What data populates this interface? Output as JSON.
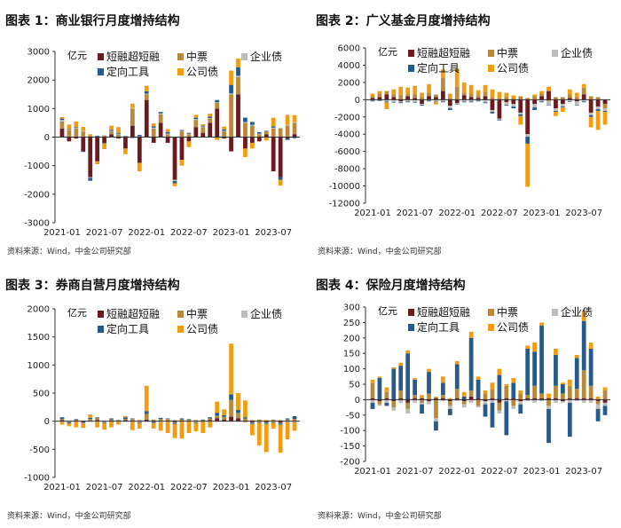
{
  "colors": {
    "short_term": "#6b1a1f",
    "mtn": "#b8893d",
    "corporate": "#bcbcbc",
    "ppn": "#275a8a",
    "company": "#f39c12"
  },
  "chart_data": [
    {
      "type": "bar",
      "stacked": true,
      "title": "图表 1：商业银行月度增持结构",
      "unit": "亿元",
      "source": "资料来源：Wind，中金公司研究部",
      "ylim": [
        -3000,
        3000
      ],
      "yticks": [
        -3000,
        -2000,
        -1000,
        0,
        1000,
        2000,
        3000
      ],
      "xtick_labels": [
        "2021-01",
        "2021-07",
        "2022-01",
        "2022-07",
        "2023-01",
        "2023-07"
      ],
      "categories": [
        "2021-01",
        "2021-02",
        "2021-03",
        "2021-04",
        "2021-05",
        "2021-06",
        "2021-07",
        "2021-08",
        "2021-09",
        "2021-10",
        "2021-11",
        "2021-12",
        "2022-01",
        "2022-02",
        "2022-03",
        "2022-04",
        "2022-05",
        "2022-06",
        "2022-07",
        "2022-08",
        "2022-09",
        "2022-10",
        "2022-11",
        "2022-12",
        "2023-01",
        "2023-02",
        "2023-03",
        "2023-04",
        "2023-05",
        "2023-06",
        "2023-07",
        "2023-08",
        "2023-09",
        "2023-10"
      ],
      "series": [
        {
          "name": "短融超短融",
          "color_key": "short_term",
          "values": [
            300,
            -150,
            -50,
            -500,
            -1400,
            -850,
            -200,
            100,
            -50,
            -400,
            400,
            -900,
            1300,
            -200,
            500,
            -200,
            -1500,
            -800,
            -150,
            350,
            150,
            500,
            1000,
            -50,
            -500,
            1500,
            -400,
            -200,
            -150,
            100,
            -1200,
            -1400,
            -50,
            100
          ]
        },
        {
          "name": "中票",
          "color_key": "mtn",
          "values": [
            250,
            250,
            300,
            200,
            50,
            0,
            50,
            100,
            100,
            0,
            600,
            0,
            200,
            300,
            300,
            100,
            0,
            200,
            100,
            250,
            200,
            150,
            200,
            200,
            1500,
            600,
            500,
            400,
            100,
            100,
            300,
            300,
            400,
            400
          ]
        },
        {
          "name": "企业债",
          "color_key": "corporate",
          "values": [
            50,
            20,
            20,
            10,
            -30,
            20,
            20,
            20,
            20,
            20,
            20,
            30,
            20,
            30,
            30,
            20,
            -40,
            20,
            20,
            30,
            20,
            20,
            20,
            20,
            30,
            50,
            30,
            30,
            20,
            -20,
            30,
            30,
            30,
            20
          ]
        },
        {
          "name": "定向工具",
          "color_key": "ppn",
          "values": [
            50,
            20,
            30,
            -20,
            -100,
            30,
            -20,
            30,
            30,
            20,
            -30,
            50,
            80,
            50,
            50,
            60,
            -80,
            30,
            30,
            50,
            30,
            50,
            80,
            50,
            300,
            300,
            150,
            100,
            50,
            20,
            50,
            -100,
            -50,
            -40
          ]
        },
        {
          "name": "公司债",
          "color_key": "company",
          "values": [
            50,
            150,
            200,
            150,
            50,
            -100,
            -200,
            150,
            200,
            -200,
            150,
            -300,
            200,
            100,
            0,
            100,
            -100,
            -200,
            -200,
            100,
            50,
            100,
            -100,
            100,
            500,
            300,
            -300,
            -200,
            0,
            -100,
            300,
            -200,
            350,
            250
          ]
        }
      ]
    },
    {
      "type": "bar",
      "stacked": true,
      "title": "图表 2：广义基金月度增持结构",
      "unit": "亿元",
      "source": "资料来源：Wind，中金公司研究部",
      "ylim": [
        -12000,
        6000
      ],
      "yticks": [
        -12000,
        -10000,
        -8000,
        -6000,
        -4000,
        -2000,
        0,
        2000,
        4000,
        6000
      ],
      "xtick_labels": [
        "2021-01",
        "2021-07",
        "2022-01",
        "2022-07",
        "2023-01",
        "2023-07"
      ],
      "categories": [
        "2021-01",
        "2021-02",
        "2021-03",
        "2021-04",
        "2021-05",
        "2021-06",
        "2021-07",
        "2021-08",
        "2021-09",
        "2021-10",
        "2021-11",
        "2021-12",
        "2022-01",
        "2022-02",
        "2022-03",
        "2022-04",
        "2022-05",
        "2022-06",
        "2022-07",
        "2022-08",
        "2022-09",
        "2022-10",
        "2022-11",
        "2022-12",
        "2023-01",
        "2023-02",
        "2023-03",
        "2023-04",
        "2023-05",
        "2023-06",
        "2023-07",
        "2023-08",
        "2023-09",
        "2023-10"
      ],
      "series": [
        {
          "name": "短融超短融",
          "color_key": "short_term",
          "values": [
            200,
            300,
            600,
            300,
            -200,
            400,
            200,
            -500,
            400,
            300,
            1000,
            -700,
            -400,
            500,
            300,
            200,
            400,
            -1200,
            -2200,
            -300,
            -500,
            -1500,
            -4000,
            -500,
            400,
            1000,
            -1000,
            -500,
            200,
            -200,
            600,
            -1500,
            -800,
            -500
          ]
        },
        {
          "name": "中票",
          "color_key": "mtn",
          "values": [
            200,
            400,
            400,
            300,
            500,
            200,
            400,
            300,
            400,
            300,
            1500,
            200,
            1500,
            300,
            400,
            300,
            500,
            300,
            200,
            300,
            200,
            400,
            200,
            400,
            300,
            -200,
            300,
            300,
            400,
            300,
            800,
            400,
            300,
            -500
          ]
        },
        {
          "name": "企业债",
          "color_key": "corporate",
          "values": [
            -100,
            -100,
            -200,
            -300,
            -100,
            -200,
            -300,
            -100,
            -100,
            -200,
            -200,
            -300,
            -100,
            -200,
            -200,
            -100,
            -300,
            -200,
            -100,
            -300,
            -300,
            -200,
            -300,
            -400,
            -200,
            -400,
            -300,
            -300,
            -200,
            -400,
            -200,
            -300,
            -300,
            -300
          ]
        },
        {
          "name": "定向工具",
          "color_key": "ppn",
          "values": [
            -100,
            -50,
            -100,
            -50,
            -100,
            -100,
            -50,
            -100,
            -100,
            -50,
            -100,
            -200,
            -50,
            -100,
            -100,
            -100,
            -100,
            -200,
            -100,
            -100,
            -200,
            -200,
            -800,
            -300,
            -100,
            -50,
            -100,
            -100,
            -50,
            -50,
            -100,
            -200,
            -200,
            -100
          ]
        },
        {
          "name": "公司债",
          "color_key": "company",
          "values": [
            300,
            300,
            -800,
            600,
            1000,
            800,
            1000,
            500,
            1000,
            -300,
            1000,
            500,
            2100,
            1200,
            1000,
            600,
            800,
            900,
            700,
            500,
            300,
            -1000,
            -5000,
            200,
            300,
            500,
            -500,
            -500,
            600,
            500,
            400,
            -1200,
            -2200,
            -1500
          ]
        }
      ]
    },
    {
      "type": "bar",
      "stacked": true,
      "title": "图表 3：券商自营月度增持结构",
      "unit": "亿元",
      "source": "资料来源：Wind，中金公司研究部",
      "ylim": [
        -1000,
        2000
      ],
      "yticks": [
        -1000,
        -500,
        0,
        500,
        1000,
        1500,
        2000
      ],
      "xtick_labels": [
        "2021-01",
        "2021-07",
        "2022-01",
        "2022-07",
        "2023-01",
        "2023-07"
      ],
      "categories": [
        "2021-01",
        "2021-02",
        "2021-03",
        "2021-04",
        "2021-05",
        "2021-06",
        "2021-07",
        "2021-08",
        "2021-09",
        "2021-10",
        "2021-11",
        "2021-12",
        "2022-01",
        "2022-02",
        "2022-03",
        "2022-04",
        "2022-05",
        "2022-06",
        "2022-07",
        "2022-08",
        "2022-09",
        "2022-10",
        "2022-11",
        "2022-12",
        "2023-01",
        "2023-02",
        "2023-03",
        "2023-04",
        "2023-05",
        "2023-06",
        "2023-07",
        "2023-08",
        "2023-09",
        "2023-10"
      ],
      "series": [
        {
          "name": "短融超短融",
          "color_key": "short_term",
          "values": [
            20,
            -10,
            10,
            -20,
            10,
            20,
            -10,
            10,
            0,
            20,
            10,
            -10,
            30,
            10,
            -10,
            10,
            -20,
            10,
            10,
            -10,
            10,
            20,
            50,
            30,
            80,
            50,
            -10,
            -20,
            -10,
            -20,
            -10,
            -30,
            -10,
            -10
          ]
        },
        {
          "name": "中票",
          "color_key": "mtn",
          "values": [
            20,
            10,
            20,
            10,
            30,
            40,
            10,
            20,
            10,
            20,
            30,
            20,
            100,
            20,
            40,
            30,
            20,
            20,
            20,
            20,
            10,
            30,
            50,
            50,
            300,
            100,
            50,
            20,
            30,
            20,
            30,
            20,
            30,
            40
          ]
        },
        {
          "name": "企业债",
          "color_key": "corporate",
          "values": [
            -10,
            -10,
            -10,
            -10,
            -10,
            -10,
            -10,
            -10,
            -10,
            -10,
            -10,
            -10,
            -10,
            -10,
            -10,
            -10,
            -10,
            -10,
            -10,
            -10,
            -10,
            -10,
            -10,
            -10,
            -10,
            -10,
            -10,
            -10,
            -10,
            -10,
            -10,
            -10,
            -10,
            -10
          ]
        },
        {
          "name": "定向工具",
          "color_key": "ppn",
          "values": [
            30,
            -20,
            10,
            -10,
            20,
            10,
            -10,
            20,
            10,
            30,
            10,
            -10,
            50,
            -20,
            20,
            10,
            -20,
            20,
            10,
            -10,
            10,
            20,
            50,
            30,
            100,
            50,
            20,
            -20,
            -10,
            -20,
            -10,
            -20,
            20,
            50
          ]
        },
        {
          "name": "公司债",
          "color_key": "company",
          "values": [
            -50,
            -50,
            -100,
            -80,
            60,
            -100,
            -120,
            -100,
            -50,
            20,
            -150,
            -100,
            450,
            -100,
            -150,
            -200,
            -250,
            -300,
            -200,
            -150,
            -200,
            -100,
            200,
            100,
            900,
            300,
            300,
            -200,
            -400,
            -500,
            -100,
            -500,
            -300,
            -150
          ]
        }
      ]
    },
    {
      "type": "bar",
      "stacked": true,
      "title": "图表 4：保险月度增持结构",
      "unit": "亿元",
      "source": "资料来源：Wind，中金公司研究部",
      "ylim": [
        -200,
        300
      ],
      "yticks": [
        -200,
        -150,
        -100,
        -50,
        0,
        50,
        100,
        150,
        200,
        250,
        300
      ],
      "xtick_labels": [
        "2021-01",
        "2021-07",
        "2022-01",
        "2022-07",
        "2023-01",
        "2023-07"
      ],
      "categories": [
        "2021-01",
        "2021-02",
        "2021-03",
        "2021-04",
        "2021-05",
        "2021-06",
        "2021-07",
        "2021-08",
        "2021-09",
        "2021-10",
        "2021-11",
        "2021-12",
        "2022-01",
        "2022-02",
        "2022-03",
        "2022-04",
        "2022-05",
        "2022-06",
        "2022-07",
        "2022-08",
        "2022-09",
        "2022-10",
        "2022-11",
        "2022-12",
        "2023-01",
        "2023-02",
        "2023-03",
        "2023-04",
        "2023-05",
        "2023-06",
        "2023-07",
        "2023-08",
        "2023-09",
        "2023-10"
      ],
      "series": [
        {
          "name": "短融超短融",
          "color_key": "short_term",
          "values": [
            5,
            -5,
            5,
            -5,
            5,
            -10,
            5,
            5,
            -5,
            5,
            5,
            -5,
            5,
            -5,
            10,
            5,
            -5,
            5,
            -10,
            5,
            5,
            -5,
            5,
            5,
            5,
            5,
            5,
            -5,
            5,
            5,
            5,
            5,
            -5,
            -10
          ]
        },
        {
          "name": "中票",
          "color_key": "mtn",
          "values": [
            50,
            -10,
            20,
            -20,
            25,
            -20,
            10,
            -10,
            20,
            -60,
            10,
            -15,
            30,
            -10,
            20,
            -20,
            20,
            30,
            -25,
            40,
            -20,
            20,
            10,
            40,
            15,
            -20,
            40,
            20,
            40,
            30,
            90,
            40,
            -10,
            30
          ]
        },
        {
          "name": "企业债",
          "color_key": "corporate",
          "values": [
            -10,
            -5,
            -10,
            -10,
            -10,
            -15,
            -10,
            -5,
            -10,
            -10,
            -5,
            -10,
            -5,
            -10,
            -10,
            -5,
            -10,
            -10,
            -10,
            -5,
            -10,
            -10,
            -5,
            -10,
            -5,
            -10,
            -10,
            -5,
            -10,
            -5,
            -10,
            -10,
            -15,
            -10
          ]
        },
        {
          "name": "定向工具",
          "color_key": "ppn",
          "values": [
            -20,
            70,
            -10,
            100,
            80,
            150,
            50,
            -30,
            70,
            -30,
            40,
            -20,
            80,
            10,
            170,
            60,
            -40,
            -80,
            80,
            -110,
            50,
            -30,
            150,
            110,
            220,
            -110,
            100,
            30,
            -110,
            100,
            160,
            120,
            -40,
            -30
          ]
        },
        {
          "name": "公司债",
          "color_key": "company",
          "values": [
            10,
            5,
            15,
            5,
            10,
            10,
            5,
            10,
            10,
            5,
            20,
            5,
            10,
            15,
            20,
            10,
            10,
            20,
            20,
            5,
            15,
            10,
            10,
            30,
            10,
            15,
            20,
            5,
            20,
            10,
            30,
            20,
            10,
            10
          ]
        }
      ]
    }
  ]
}
